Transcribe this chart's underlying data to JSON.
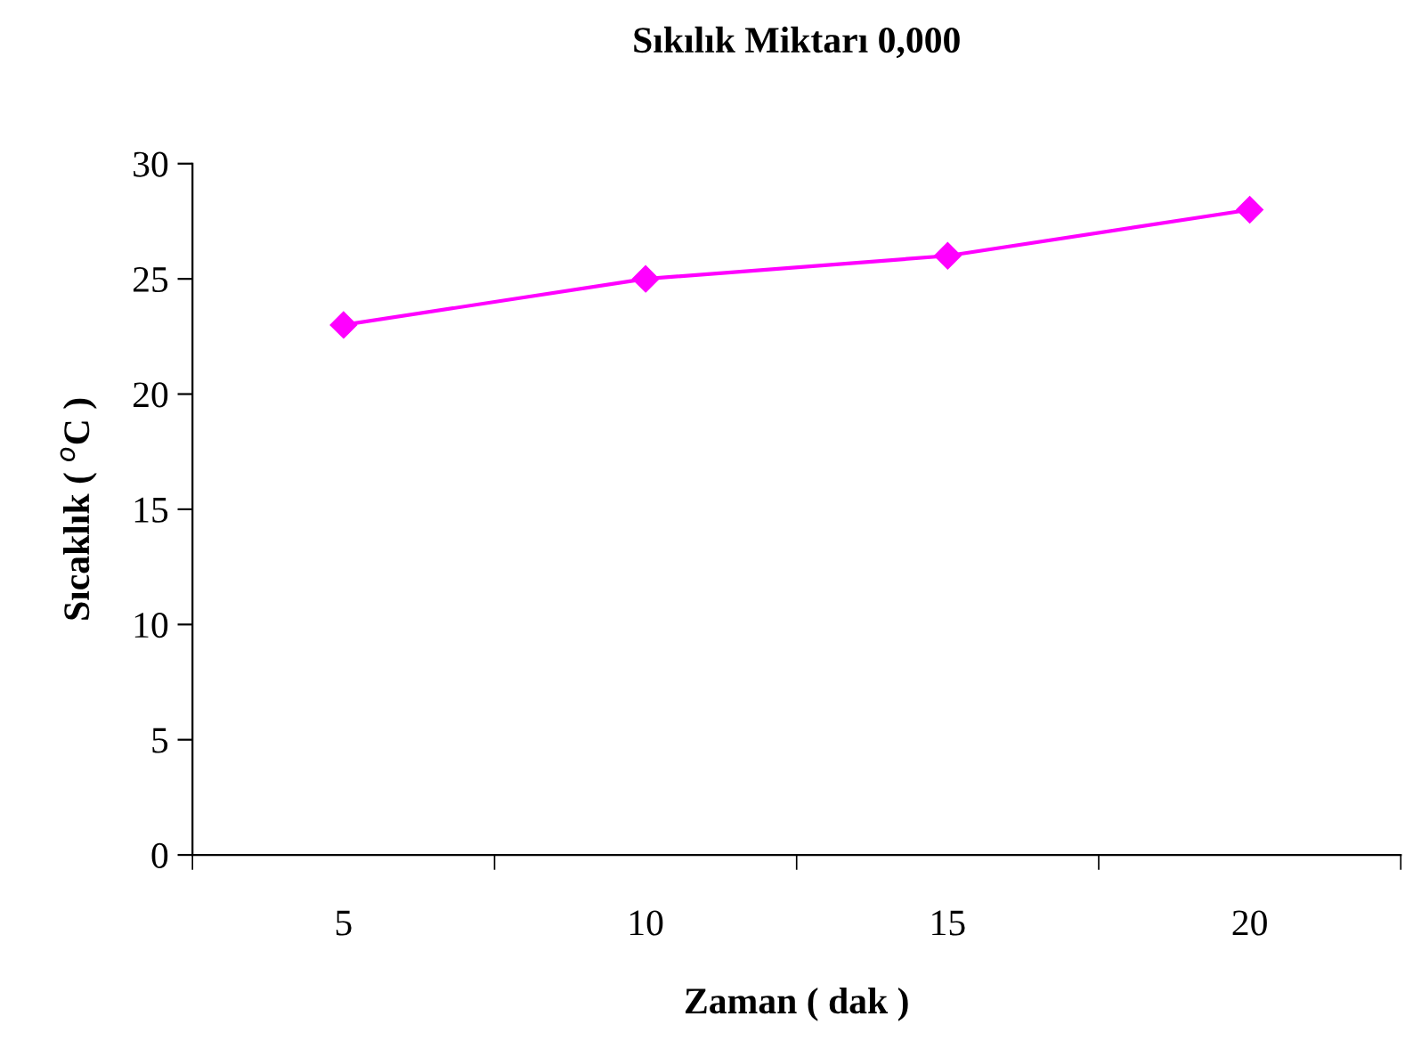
{
  "chart_data": {
    "type": "line",
    "title": "Sıkılık Miktarı 0,000",
    "xlabel": "Zaman ( dak )",
    "ylabel": "Sıcaklık ( $^{o}$C )",
    "categories": [
      "5",
      "10",
      "15",
      "20"
    ],
    "series": [
      {
        "color": "#ff00ff",
        "values": [
          23,
          25,
          26,
          28
        ]
      }
    ],
    "ylim": [
      0,
      30
    ],
    "yticks": [
      0,
      5,
      10,
      15,
      20,
      25,
      30
    ],
    "grid": false,
    "legend": false,
    "marker": "diamond",
    "line_style": "solid"
  }
}
